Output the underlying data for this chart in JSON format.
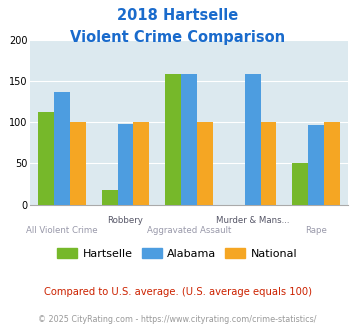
{
  "title_line1": "2018 Hartselle",
  "title_line2": "Violent Crime Comparison",
  "categories": [
    "All Violent Crime",
    "Robbery",
    "Aggravated Assault",
    "Murder & Mans...",
    "Rape"
  ],
  "hartselle": [
    112,
    18,
    158,
    0,
    50
  ],
  "alabama": [
    136,
    98,
    158,
    158,
    96
  ],
  "national": [
    100,
    100,
    100,
    100,
    100
  ],
  "colors": {
    "hartselle": "#76b82a",
    "alabama": "#4d9de0",
    "national": "#f5a623"
  },
  "ylim": [
    0,
    200
  ],
  "yticks": [
    0,
    50,
    100,
    150,
    200
  ],
  "background_color": "#dce9ef",
  "title_color": "#1a6bcc",
  "legend_note": "Compared to U.S. average. (U.S. average equals 100)",
  "footer": "© 2025 CityRating.com - https://www.cityrating.com/crime-statistics/",
  "footer_url_color": "#4d9de0",
  "bar_width": 0.25
}
